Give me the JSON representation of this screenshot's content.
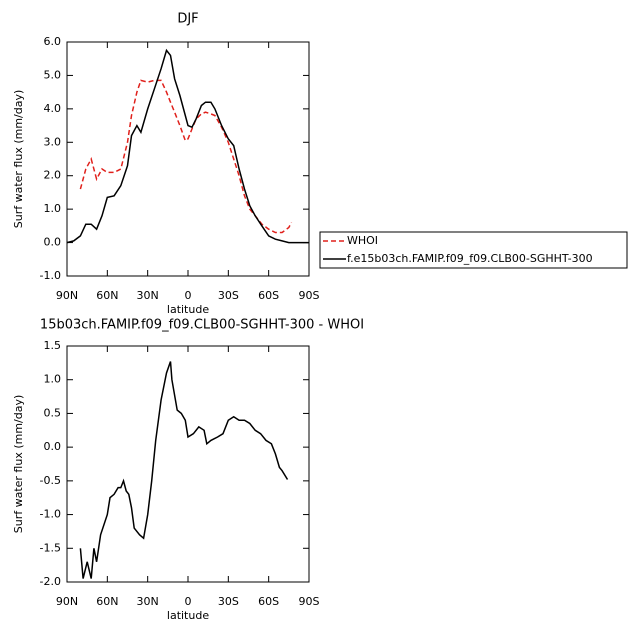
{
  "chart_data": [
    {
      "type": "line",
      "title": "DJF",
      "xlabel": "latitude",
      "ylabel": "Surf water flux (mm/day)",
      "x": [
        90,
        85,
        80,
        76,
        72,
        68,
        64,
        60,
        55,
        50,
        45,
        42,
        38,
        35,
        30,
        25,
        20,
        16,
        13,
        10,
        6,
        2,
        0,
        -3,
        -6,
        -10,
        -13,
        -17,
        -20,
        -25,
        -30,
        -34,
        -38,
        -42,
        -46,
        -50,
        -55,
        -60,
        -65,
        -70,
        -75,
        -77,
        -80,
        -85,
        -90
      ],
      "series": [
        {
          "name": "WHOI",
          "color": "#e0201b",
          "dashed": true,
          "values": [
            null,
            null,
            1.6,
            2.2,
            2.5,
            1.9,
            2.2,
            2.1,
            2.1,
            2.2,
            3.0,
            3.8,
            4.5,
            4.85,
            4.8,
            4.85,
            4.85,
            4.5,
            4.2,
            3.9,
            3.5,
            3.05,
            3.1,
            3.4,
            3.7,
            3.85,
            3.9,
            3.85,
            3.8,
            3.45,
            3.0,
            2.5,
            2.0,
            1.4,
            1.0,
            0.8,
            0.55,
            0.4,
            0.3,
            0.3,
            0.45,
            0.6,
            null,
            null,
            null
          ]
        },
        {
          "name": "f.e15b03ch.FAMIP.f09_f09.CLB00-SGHHT-300",
          "color": "#000000",
          "dashed": false,
          "values": [
            0,
            0.05,
            0.2,
            0.55,
            0.55,
            0.4,
            0.8,
            1.35,
            1.4,
            1.7,
            2.3,
            3.2,
            3.5,
            3.3,
            4.0,
            4.6,
            5.2,
            5.75,
            5.6,
            4.9,
            4.4,
            3.8,
            3.5,
            3.45,
            3.7,
            4.1,
            4.2,
            4.2,
            4.0,
            3.5,
            3.1,
            2.9,
            2.2,
            1.6,
            1.1,
            0.8,
            0.5,
            0.2,
            0.1,
            0.05,
            0,
            0,
            0,
            0,
            0
          ]
        }
      ],
      "xlim": [
        90,
        -90
      ],
      "xticks": [
        {
          "value": 90,
          "label": "90N"
        },
        {
          "value": 60,
          "label": "60N"
        },
        {
          "value": 30,
          "label": "30N"
        },
        0,
        {
          "value": -30,
          "label": "30S"
        },
        {
          "value": -60,
          "label": "60S"
        },
        {
          "value": -90,
          "label": "90S"
        }
      ],
      "ylim": [
        -1,
        6
      ],
      "yticks": [
        {
          "value": -1,
          "label": "-1.0"
        },
        {
          "value": 0,
          "label": "0.0"
        },
        {
          "value": 1,
          "label": "1.0"
        },
        {
          "value": 2,
          "label": "2.0"
        },
        {
          "value": 3,
          "label": "3.0"
        },
        {
          "value": 4,
          "label": "4.0"
        },
        {
          "value": 5,
          "label": "5.0"
        },
        {
          "value": 6,
          "label": "6.0"
        }
      ],
      "legend": "right"
    },
    {
      "type": "line",
      "title": "15b03ch.FAMIP.f09_f09.CLB00-SGHHT-300 - WHOI",
      "xlabel": "latitude",
      "ylabel": "Surf water flux (mm/day)",
      "x": [
        80,
        78,
        75,
        72,
        70,
        68,
        65,
        60,
        58,
        55,
        52,
        50,
        48,
        46,
        44,
        42,
        40,
        36,
        33,
        30,
        27,
        24,
        20,
        16,
        13,
        12,
        8,
        5,
        2,
        0,
        -4,
        -8,
        -12,
        -14,
        -17,
        -22,
        -26,
        -30,
        -34,
        -38,
        -42,
        -46,
        -50,
        -54,
        -58,
        -62,
        -65,
        -68,
        -70,
        -74
      ],
      "series": [
        {
          "name": null,
          "color": "#000000",
          "dashed": false,
          "values": [
            -1.5,
            -1.95,
            -1.7,
            -1.95,
            -1.5,
            -1.7,
            -1.3,
            -1.0,
            -0.75,
            -0.7,
            -0.6,
            -0.6,
            -0.5,
            -0.65,
            -0.7,
            -0.9,
            -1.2,
            -1.3,
            -1.35,
            -1.0,
            -0.5,
            0.1,
            0.7,
            1.1,
            1.27,
            1.0,
            0.55,
            0.5,
            0.4,
            0.15,
            0.2,
            0.3,
            0.25,
            0.05,
            0.1,
            0.15,
            0.2,
            0.4,
            0.45,
            0.4,
            0.4,
            0.35,
            0.25,
            0.2,
            0.1,
            0.05,
            -0.1,
            -0.3,
            -0.35,
            -0.48
          ]
        }
      ],
      "xlim": [
        90,
        -90
      ],
      "xticks": [
        {
          "value": 90,
          "label": "90N"
        },
        {
          "value": 60,
          "label": "60N"
        },
        {
          "value": 30,
          "label": "30N"
        },
        0,
        {
          "value": -30,
          "label": "30S"
        },
        {
          "value": -60,
          "label": "60S"
        },
        {
          "value": -90,
          "label": "90S"
        }
      ],
      "ylim": [
        -2,
        1.5
      ],
      "yticks": [
        {
          "value": -2,
          "label": "-2.0"
        },
        {
          "value": -1.5,
          "label": "-1.5"
        },
        {
          "value": -1,
          "label": "-1.0"
        },
        {
          "value": -0.5,
          "label": "-0.5"
        },
        {
          "value": 0,
          "label": "0.0"
        },
        {
          "value": 0.5,
          "label": "0.5"
        },
        {
          "value": 1,
          "label": "1.0"
        },
        {
          "value": 1.5,
          "label": "1.5"
        }
      ]
    }
  ]
}
